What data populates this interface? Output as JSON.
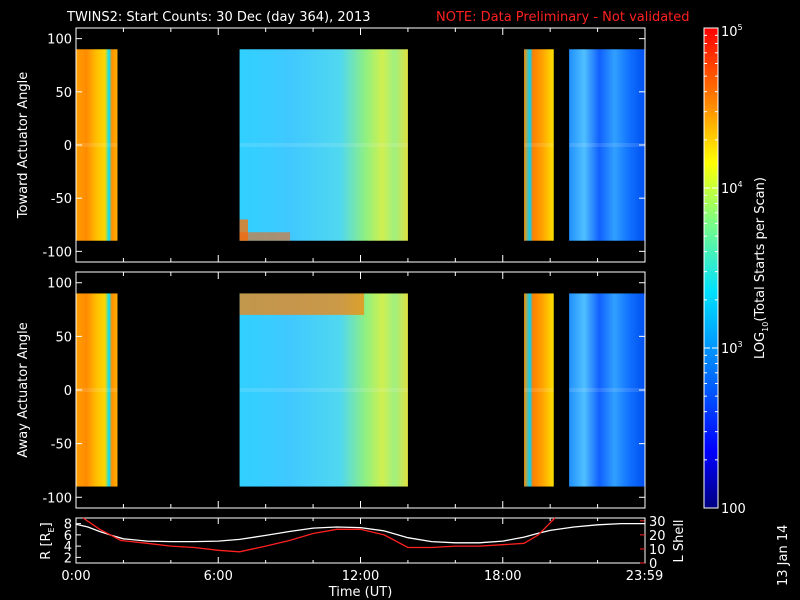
{
  "title": "TWINS2: Start Counts: 30 Dec (day 364), 2013",
  "note": "NOTE: Data Preliminary - Not validated",
  "date_stamp": "13 Jan 14",
  "colors": {
    "background": "#000000",
    "axis": "#ffffff",
    "note": "#ff2020",
    "l_shell": "#ff2020",
    "r_line": "#ffffff"
  },
  "chart_data": [
    {
      "type": "heatmap",
      "panel": "toward",
      "ylabel": "Toward Actuator Angle",
      "ylim": [
        -110,
        110
      ],
      "yticks": [
        -100,
        -50,
        0,
        50,
        100
      ],
      "xlim_hours": [
        0,
        24
      ],
      "data_blocks": [
        {
          "start_hour": 0.0,
          "end_hour": 1.75,
          "level": "high"
        },
        {
          "start_hour": 6.9,
          "end_hour": 14.0,
          "level": "medium"
        },
        {
          "start_hour": 18.9,
          "end_hour": 20.15,
          "level": "high"
        },
        {
          "start_hour": 20.8,
          "end_hour": 23.99,
          "level": "low"
        }
      ],
      "angle_coverage": [
        -90,
        90
      ]
    },
    {
      "type": "heatmap",
      "panel": "away",
      "ylabel": "Away Actuator Angle",
      "ylim": [
        -110,
        110
      ],
      "yticks": [
        -100,
        -50,
        0,
        50,
        100
      ],
      "xlim_hours": [
        0,
        24
      ],
      "data_blocks": [
        {
          "start_hour": 0.0,
          "end_hour": 1.75,
          "level": "high"
        },
        {
          "start_hour": 6.9,
          "end_hour": 14.0,
          "level": "medium"
        },
        {
          "start_hour": 18.9,
          "end_hour": 20.15,
          "level": "high"
        },
        {
          "start_hour": 20.8,
          "end_hour": 23.99,
          "level": "low"
        }
      ],
      "angle_coverage": [
        -90,
        90
      ]
    },
    {
      "type": "line",
      "panel": "orbit",
      "ylabel_left": "R [R",
      "ylabel_left_sub": "E",
      "ylabel_left_close": "]",
      "ylabel_right": "L Shell",
      "ylim_left": [
        1,
        9
      ],
      "yticks_left": [
        2,
        4,
        6,
        8
      ],
      "ylim_right": [
        0,
        32
      ],
      "yticks_right": [
        0,
        10,
        20,
        30
      ],
      "xlabel": "Time (UT)",
      "xticks": [
        {
          "hour": 0,
          "label": "0:00"
        },
        {
          "hour": 6,
          "label": "6:00"
        },
        {
          "hour": 12,
          "label": "12:00"
        },
        {
          "hour": 18,
          "label": "18:00"
        },
        {
          "hour": 23.98,
          "label": "23:59"
        }
      ],
      "series": [
        {
          "axis": "left",
          "color": "#ffffff",
          "x": [
            0,
            0.5,
            1,
            1.5,
            2,
            3,
            4,
            5,
            6,
            6.9,
            8,
            9,
            10,
            11,
            12,
            13,
            14,
            15,
            16,
            17,
            18,
            18.9,
            19.5,
            20,
            21,
            22,
            23,
            24
          ],
          "y": [
            7.9,
            7.4,
            6.6,
            5.9,
            5.3,
            4.9,
            4.8,
            4.8,
            4.9,
            5.2,
            5.9,
            6.6,
            7.2,
            7.4,
            7.3,
            6.7,
            5.5,
            4.8,
            4.6,
            4.6,
            4.9,
            5.6,
            6.3,
            6.8,
            7.4,
            7.8,
            8.0,
            8.0
          ]
        },
        {
          "axis": "right",
          "color": "#ff2020",
          "x": [
            0.3,
            1.0,
            1.9,
            3,
            4,
            5,
            6,
            6.9,
            8,
            9,
            10,
            11,
            12,
            13,
            14,
            15,
            16,
            17,
            18,
            18.9,
            19.5,
            20.2
          ],
          "y": [
            32,
            24,
            16,
            14,
            12,
            11,
            9,
            8,
            12,
            16,
            21,
            24,
            24,
            20,
            11,
            11,
            12,
            12,
            13,
            14,
            20,
            32
          ]
        }
      ]
    }
  ],
  "colorbar": {
    "label_main": "LOG",
    "label_sub": "10",
    "label_rest": "(Total Starts per Scan)",
    "ticks": [
      {
        "value": 100000,
        "label": "10",
        "sup": "5"
      },
      {
        "value": 10000,
        "label": "10",
        "sup": "4"
      },
      {
        "value": 1000,
        "label": "10",
        "sup": "3"
      },
      {
        "value": 100,
        "label": "100",
        "sup": ""
      }
    ],
    "range": [
      100,
      100000
    ]
  }
}
